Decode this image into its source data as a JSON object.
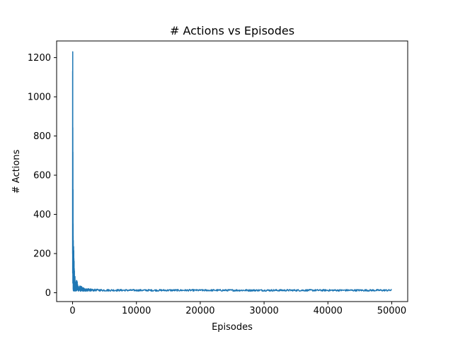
{
  "chart_data": {
    "type": "line",
    "title": "# Actions vs Episodes",
    "xlabel": "Episodes",
    "ylabel": "# Actions",
    "xlim": [
      -2500,
      52500
    ],
    "ylim": [
      -45,
      1285
    ],
    "xticks": [
      0,
      10000,
      20000,
      30000,
      40000,
      50000
    ],
    "yticks": [
      0,
      200,
      400,
      600,
      800,
      1000,
      1200
    ],
    "grid": false,
    "legend": "none",
    "series": [
      {
        "color": "#1f77b4",
        "envelope": {
          "x": [
            0,
            20,
            40,
            60,
            80,
            100,
            150,
            200,
            250,
            300,
            400,
            500,
            700,
            1000,
            1500,
            2000,
            3000,
            5000,
            10000,
            20000,
            30000,
            40000,
            50000
          ],
          "upper": [
            1100,
            1230,
            1000,
            700,
            450,
            300,
            270,
            200,
            150,
            110,
            95,
            80,
            60,
            40,
            30,
            22,
            19,
            18,
            17,
            17,
            17,
            17,
            17
          ],
          "lower": [
            40,
            25,
            20,
            15,
            12,
            10,
            10,
            9,
            9,
            8,
            8,
            8,
            8,
            8,
            8,
            8,
            8,
            8,
            8,
            8,
            8,
            8,
            8
          ]
        }
      }
    ]
  }
}
